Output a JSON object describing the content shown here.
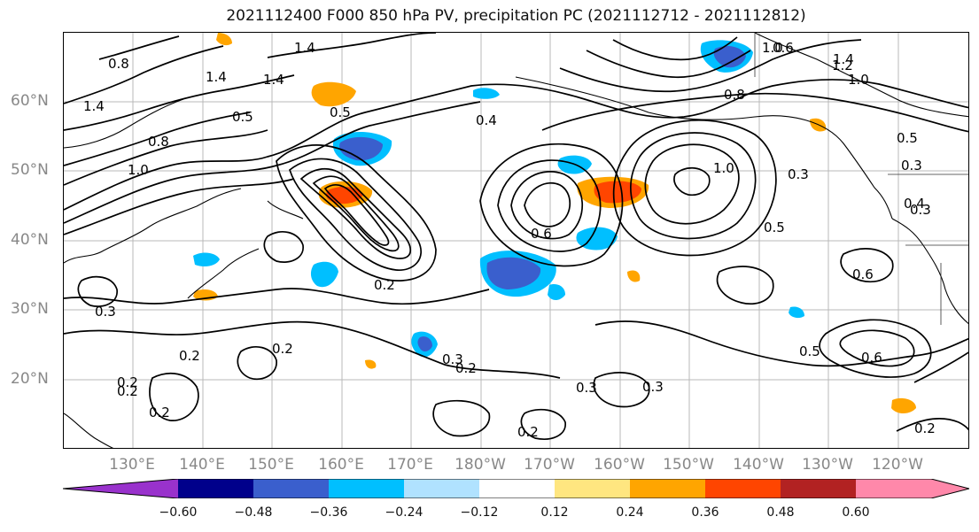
{
  "title": "2021112400 F000 850 hPa PV, precipitation PC (2021112712 - 2021112812)",
  "lat_labels": [
    "60°N",
    "50°N",
    "40°N",
    "30°N",
    "20°N"
  ],
  "lon_labels": [
    "130°E",
    "140°E",
    "150°E",
    "160°E",
    "170°E",
    "180°W",
    "170°W",
    "160°W",
    "150°W",
    "140°W",
    "130°W",
    "120°W"
  ],
  "colorbar": {
    "ticks": [
      "−0.60",
      "−0.48",
      "−0.36",
      "−0.24",
      "−0.12",
      "0.12",
      "0.24",
      "0.36",
      "0.48",
      "0.60"
    ],
    "colors": [
      "#9932cc",
      "#00008b",
      "#3a5fcd",
      "#00bfff",
      "#b0e2ff",
      "#ffffff",
      "#ffe680",
      "#ffa500",
      "#ff4500",
      "#b22222",
      "#ff88aa"
    ]
  },
  "contour_labels": [
    "1.4",
    "0.8",
    "1.4",
    "0.8",
    "1.4",
    "1.4",
    "0.5",
    "1.0",
    "0.5",
    "0.4",
    "0.8",
    "1.0",
    "0.6",
    "1.4",
    "1.2",
    "1.0",
    "0.5",
    "0.3",
    "1.0",
    "0.3",
    "0.4",
    "0.3",
    "0.5",
    "0.6",
    "0.2",
    "0.2",
    "0.2",
    "0.3",
    "0.2",
    "0.3",
    "0.3",
    "0.2",
    "0.2",
    "0.2",
    "0.5",
    "0.6",
    "0.6",
    "0.2",
    "0.3",
    "0.2"
  ]
}
